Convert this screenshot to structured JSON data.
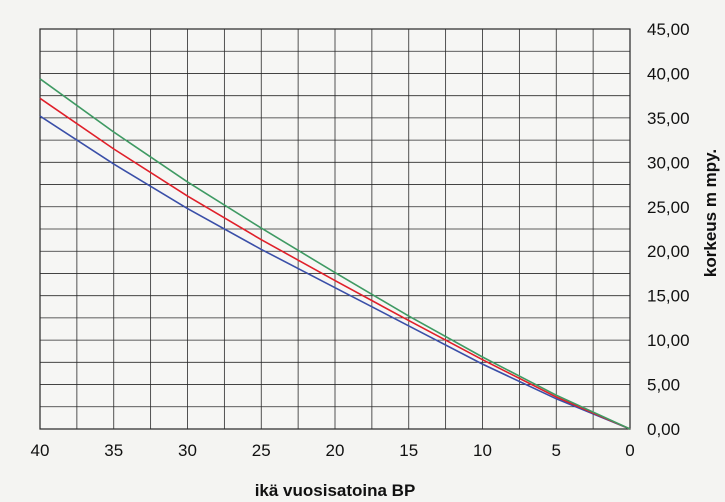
{
  "chart_data": {
    "type": "line",
    "title": "",
    "xlabel": "ikä vuosisatoina BP",
    "ylabel": "korkeus m mpy.",
    "x_reversed": true,
    "xlim": [
      0,
      40
    ],
    "ylim": [
      0,
      45
    ],
    "grid": true,
    "x_ticks": [
      "40",
      "35",
      "30",
      "25",
      "20",
      "15",
      "10",
      "5",
      "0"
    ],
    "y_ticks": [
      "0,00",
      "5,00",
      "10,00",
      "15,00",
      "20,00",
      "25,00",
      "30,00",
      "35,00",
      "40,00",
      "45,00"
    ],
    "series": [
      {
        "color": "#3a4fa8",
        "x": [
          40,
          35,
          30,
          25,
          20,
          15,
          10,
          5,
          0
        ],
        "y": [
          35.2,
          29.8,
          24.8,
          20.2,
          15.9,
          11.6,
          7.3,
          3.4,
          0
        ]
      },
      {
        "color": "#e0202a",
        "x": [
          40,
          35,
          30,
          25,
          20,
          15,
          10,
          5,
          0
        ],
        "y": [
          37.2,
          31.5,
          26.2,
          21.3,
          16.7,
          12.2,
          7.8,
          3.6,
          0
        ]
      },
      {
        "color": "#3f9a63",
        "x": [
          40,
          35,
          30,
          25,
          20,
          15,
          10,
          5,
          0
        ],
        "y": [
          39.4,
          33.4,
          27.8,
          22.6,
          17.6,
          12.7,
          8.1,
          3.8,
          0
        ]
      }
    ]
  }
}
